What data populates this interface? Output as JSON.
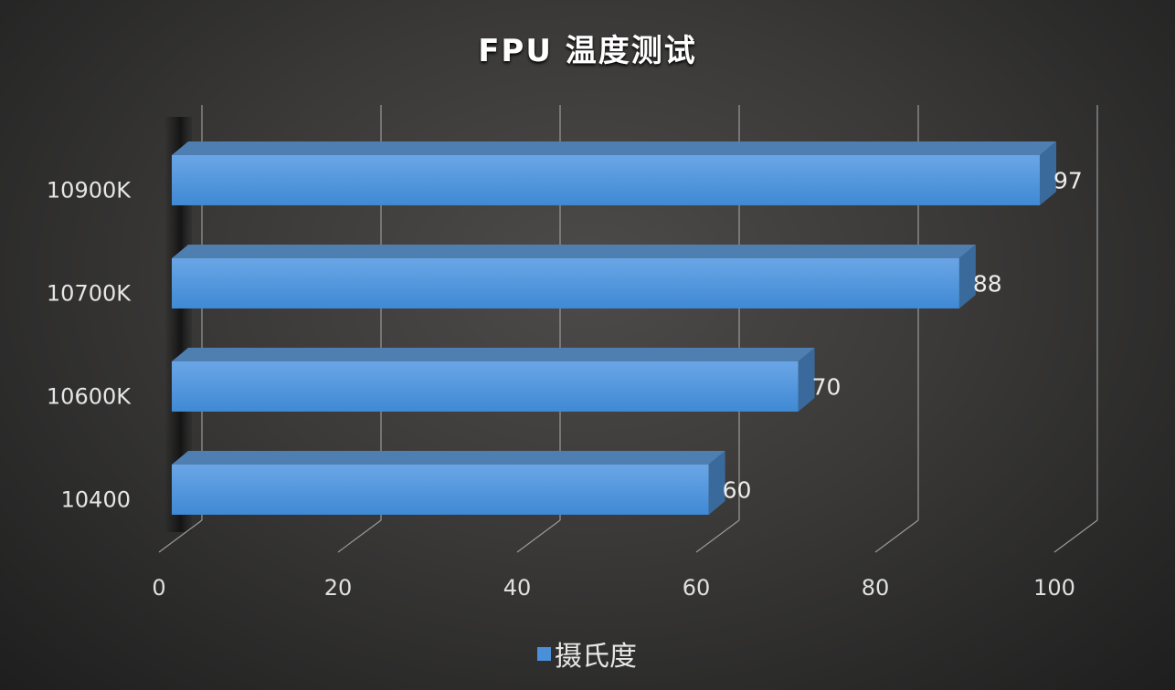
{
  "chart_data": {
    "type": "bar",
    "orientation": "horizontal",
    "title": "FPU 温度测试",
    "categories": [
      "10900K",
      "10700K",
      "10600K",
      "10400"
    ],
    "series": [
      {
        "name": "摄氏度",
        "values": [
          97,
          88,
          70,
          60
        ],
        "color": "#4a90d9"
      }
    ],
    "xlim": [
      0,
      100
    ],
    "xticks": [
      "0",
      "20",
      "40",
      "60",
      "80",
      "100"
    ],
    "grid": true,
    "legend": "bottom"
  }
}
